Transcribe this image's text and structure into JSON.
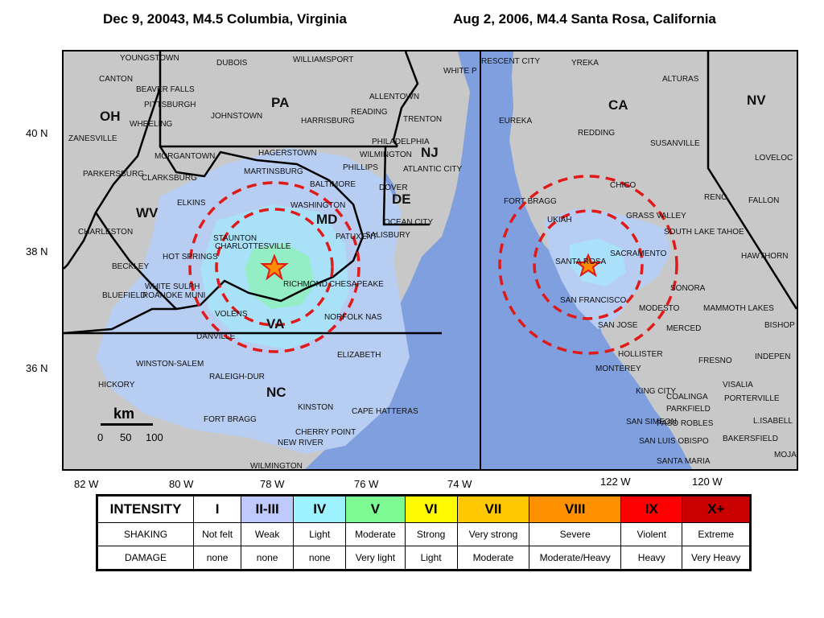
{
  "titles": {
    "left": "Dec 9, 20043, M4.5 Columbia,  Virginia",
    "right": "Aug 2, 2006, M4.4 Santa Rosa, California"
  },
  "left_map": {
    "states": [
      "PA",
      "OH",
      "WV",
      "MD",
      "NJ",
      "DE",
      "VA",
      "NC"
    ],
    "cities": [
      "YOUNGSTOWN",
      "DUBOIS",
      "WILLIAMSPORT",
      "WHITE P",
      "CANTON",
      "BEAVER FALLS",
      "PITTSBURGH",
      "ALLENTOWN",
      "READING",
      "JOHNSTOWN",
      "HARRISBURG",
      "TRENTON",
      "WHEELING",
      "PHILADELPHIA",
      "ZANESVILLE",
      "MORGANTOWN",
      "HAGERSTOWN",
      "WILMINGTON",
      "PARKERSBURG",
      "CLARKSBURG",
      "MARTINSBURG",
      "PHILLIPS",
      "ATLANTIC CITY",
      "BALTIMORE",
      "DOVER",
      "ELKINS",
      "WASHINGTON",
      "OCEAN CITY",
      "CHARLESTON",
      "SALISBURY",
      "STAUNTON",
      "CHARLOTTESVILLE",
      "PATUXENT",
      "HOT SPRINGS",
      "BECKLEY",
      "RICHMOND",
      "CHESAPEAKE",
      "WHITE SULPH",
      "BLUEFIELD",
      "ROANOKE MUNI",
      "VOLENS",
      "NORFOLK NAS",
      "DANVILLE",
      "ELIZABETH",
      "WINSTON-SALEM",
      "RALEIGH-DUR",
      "HICKORY",
      "KINSTON",
      "CAPE HATTERAS",
      "FORT BRAGG",
      "CHERRY POINT",
      "NEW RIVER",
      "WILMINGTON"
    ],
    "lat_ticks": [
      "40 N",
      "38 N",
      "36 N"
    ],
    "lon_ticks": [
      "82 W",
      "80 W",
      "78 W",
      "76 W",
      "74 W"
    ],
    "scale": {
      "unit": "km",
      "ticks": [
        "0",
        "50",
        "100"
      ]
    }
  },
  "right_map": {
    "states": [
      "CA",
      "NV"
    ],
    "cities": [
      "RESCENT CITY",
      "YREKA",
      "ALTURAS",
      "EUREKA",
      "REDDING",
      "SUSANVILLE",
      "LOVELOC",
      "FORT BRAGG",
      "CHICO",
      "RENO",
      "FALLON",
      "UKIAH",
      "GRASS VALLEY",
      "SOUTH LAKE TAHOE",
      "SANTA ROSA",
      "SACRAMENTO",
      "HAWTHORN",
      "SONORA",
      "SAN FRANCISCO",
      "MODESTO",
      "MAMMOTH LAKES",
      "SAN JOSE",
      "MERCED",
      "BISHOP",
      "HOLLISTER",
      "FRESNO",
      "INDEPEN",
      "MONTEREY",
      "VISALIA",
      "KING CITY",
      "COALINGA",
      "PORTERVILLE",
      "PARKFIELD",
      "SAN SIMEON",
      "PASO ROBLES",
      "L.ISABELL",
      "SAN LUIS OBISPO",
      "BAKERSFIELD",
      "MOJA",
      "SANTA MARIA"
    ],
    "lon_ticks": [
      "122  W",
      "120  W"
    ]
  },
  "colors": {
    "ocean": "#7f9fde",
    "land": "#c8c8c8",
    "shaking": "#b8cdf2",
    "circle": "#e01919",
    "star": "#e01919"
  },
  "legend": {
    "row_labels": [
      "INTENSITY",
      "SHAKING",
      "DAMAGE"
    ],
    "levels": [
      {
        "intensity": "I",
        "shaking": "Not felt",
        "damage": "none",
        "color": "#ffffff"
      },
      {
        "intensity": "II-III",
        "shaking": "Weak",
        "damage": "none",
        "color": "#bfc9fb"
      },
      {
        "intensity": "IV",
        "shaking": "Light",
        "damage": "none",
        "color": "#9cf3ff"
      },
      {
        "intensity": "V",
        "shaking": "Moderate",
        "damage": "Very light",
        "color": "#7efb93"
      },
      {
        "intensity": "VI",
        "shaking": "Strong",
        "damage": "Light",
        "color": "#fefa01"
      },
      {
        "intensity": "VII",
        "shaking": "Very strong",
        "damage": "Moderate",
        "color": "#ffc800"
      },
      {
        "intensity": "VIII",
        "shaking": "Severe",
        "damage": "Moderate/Heavy",
        "color": "#ff9000"
      },
      {
        "intensity": "IX",
        "shaking": "Violent",
        "damage": "Heavy",
        "color": "#ff0000"
      },
      {
        "intensity": "X+",
        "shaking": "Extreme",
        "damage": "Very Heavy",
        "color": "#c80000"
      }
    ]
  }
}
